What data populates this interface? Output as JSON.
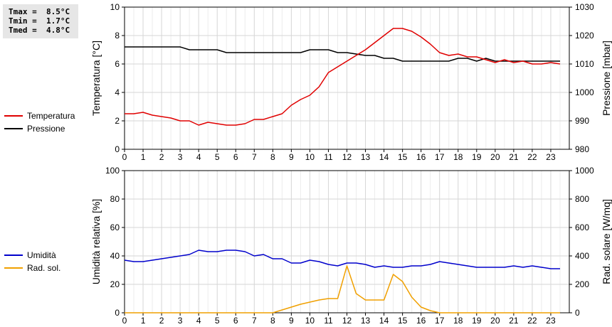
{
  "stats": [
    {
      "label": "Tmax",
      "value": "8.5°C"
    },
    {
      "label": "Tmin",
      "value": "1.7°C"
    },
    {
      "label": "Tmed",
      "value": "4.8°C"
    }
  ],
  "chart_data": [
    {
      "type": "line",
      "xlabel": "",
      "x_ticks": [
        0,
        1,
        2,
        3,
        4,
        5,
        6,
        7,
        8,
        9,
        10,
        11,
        12,
        13,
        14,
        15,
        16,
        17,
        18,
        19,
        20,
        21,
        22,
        23
      ],
      "xlim": [
        0,
        24
      ],
      "ylabel_left": "Temperatura [°C]",
      "ylim_left": [
        0,
        10
      ],
      "yticks_left": [
        0,
        2,
        4,
        6,
        8,
        10
      ],
      "ylabel_right": "Pressione [mbar]",
      "ylim_right": [
        980,
        1030
      ],
      "yticks_right": [
        980,
        990,
        1000,
        1010,
        1020,
        1030
      ],
      "grid": true,
      "legend_position": "left",
      "series": [
        {
          "name": "Temperatura",
          "axis": "left",
          "color": "#e00000",
          "x": [
            0,
            0.5,
            1,
            1.5,
            2,
            2.5,
            3,
            3.5,
            4,
            4.5,
            5,
            5.5,
            6,
            6.5,
            7,
            7.5,
            8,
            8.5,
            9,
            9.5,
            10,
            10.5,
            11,
            11.5,
            12,
            12.5,
            13,
            13.5,
            14,
            14.5,
            15,
            15.5,
            16,
            16.5,
            17,
            17.5,
            18,
            18.5,
            19,
            19.5,
            20,
            20.5,
            21,
            21.5,
            22,
            22.5,
            23,
            23.5
          ],
          "values": [
            2.5,
            2.5,
            2.6,
            2.4,
            2.3,
            2.2,
            2.0,
            2.0,
            1.7,
            1.9,
            1.8,
            1.7,
            1.7,
            1.8,
            2.1,
            2.1,
            2.3,
            2.5,
            3.1,
            3.5,
            3.8,
            4.4,
            5.4,
            5.8,
            6.2,
            6.6,
            7.0,
            7.5,
            8.0,
            8.5,
            8.5,
            8.3,
            7.9,
            7.4,
            6.8,
            6.6,
            6.7,
            6.5,
            6.5,
            6.3,
            6.1,
            6.3,
            6.1,
            6.2,
            6.0,
            6.0,
            6.1,
            6.0
          ]
        },
        {
          "name": "Pressione",
          "axis": "right",
          "color": "#000000",
          "x": [
            0,
            1,
            2,
            3,
            3.5,
            4,
            5,
            5.5,
            6,
            7,
            8,
            9,
            9.5,
            10,
            11,
            11.5,
            12,
            13,
            13.5,
            14,
            14.5,
            15,
            16,
            17,
            17.5,
            18,
            18.5,
            19,
            19.5,
            20,
            21,
            22,
            23,
            23.5
          ],
          "values": [
            1016,
            1016,
            1016,
            1016,
            1015,
            1015,
            1015,
            1014,
            1014,
            1014,
            1014,
            1014,
            1014,
            1015,
            1015,
            1014,
            1014,
            1013,
            1013,
            1012,
            1012,
            1011,
            1011,
            1011,
            1011,
            1012,
            1012,
            1011,
            1012,
            1011,
            1011,
            1011,
            1011,
            1011
          ]
        }
      ]
    },
    {
      "type": "line",
      "xlabel": "",
      "x_ticks": [
        0,
        1,
        2,
        3,
        4,
        5,
        6,
        7,
        8,
        9,
        10,
        11,
        12,
        13,
        14,
        15,
        16,
        17,
        18,
        19,
        20,
        21,
        22,
        23
      ],
      "xlim": [
        0,
        24
      ],
      "ylabel_left": "Umidità relativa [%]",
      "ylim_left": [
        0,
        100
      ],
      "yticks_left": [
        0,
        20,
        40,
        60,
        80,
        100
      ],
      "ylabel_right": "Rad. solare [W/mq]",
      "ylim_right": [
        0,
        1000
      ],
      "yticks_right": [
        0,
        200,
        400,
        600,
        800,
        1000
      ],
      "grid": true,
      "legend_position": "left",
      "series": [
        {
          "name": "Umidità",
          "axis": "left",
          "color": "#0000cc",
          "x": [
            0,
            0.5,
            1,
            1.5,
            2,
            2.5,
            3,
            3.5,
            4,
            4.5,
            5,
            5.5,
            6,
            6.5,
            7,
            7.5,
            8,
            8.5,
            9,
            9.5,
            10,
            10.5,
            11,
            11.5,
            12,
            12.5,
            13,
            13.5,
            14,
            14.5,
            15,
            15.5,
            16,
            16.5,
            17,
            17.5,
            18,
            18.5,
            19,
            19.5,
            20,
            20.5,
            21,
            21.5,
            22,
            22.5,
            23,
            23.5
          ],
          "values": [
            37,
            36,
            36,
            37,
            38,
            39,
            40,
            41,
            44,
            43,
            43,
            44,
            44,
            43,
            40,
            41,
            38,
            38,
            35,
            35,
            37,
            36,
            34,
            33,
            35,
            35,
            34,
            32,
            33,
            32,
            32,
            33,
            33,
            34,
            36,
            35,
            34,
            33,
            32,
            32,
            32,
            32,
            33,
            32,
            33,
            32,
            31,
            31
          ]
        },
        {
          "name": "Rad. sol.",
          "axis": "right",
          "color": "#f0a000",
          "x": [
            0,
            1,
            2,
            3,
            4,
            5,
            6,
            7,
            8,
            8.5,
            9,
            9.5,
            10,
            10.5,
            11,
            11.5,
            12,
            12.5,
            13,
            13.5,
            14,
            14.5,
            15,
            15.5,
            16,
            16.5,
            17,
            18,
            19,
            20,
            21,
            22,
            23,
            23.5
          ],
          "values": [
            0,
            0,
            0,
            0,
            0,
            0,
            0,
            0,
            0,
            20,
            40,
            60,
            75,
            90,
            100,
            100,
            330,
            135,
            90,
            90,
            90,
            270,
            220,
            110,
            40,
            15,
            0,
            0,
            0,
            0,
            0,
            0,
            0,
            0
          ]
        }
      ]
    }
  ]
}
